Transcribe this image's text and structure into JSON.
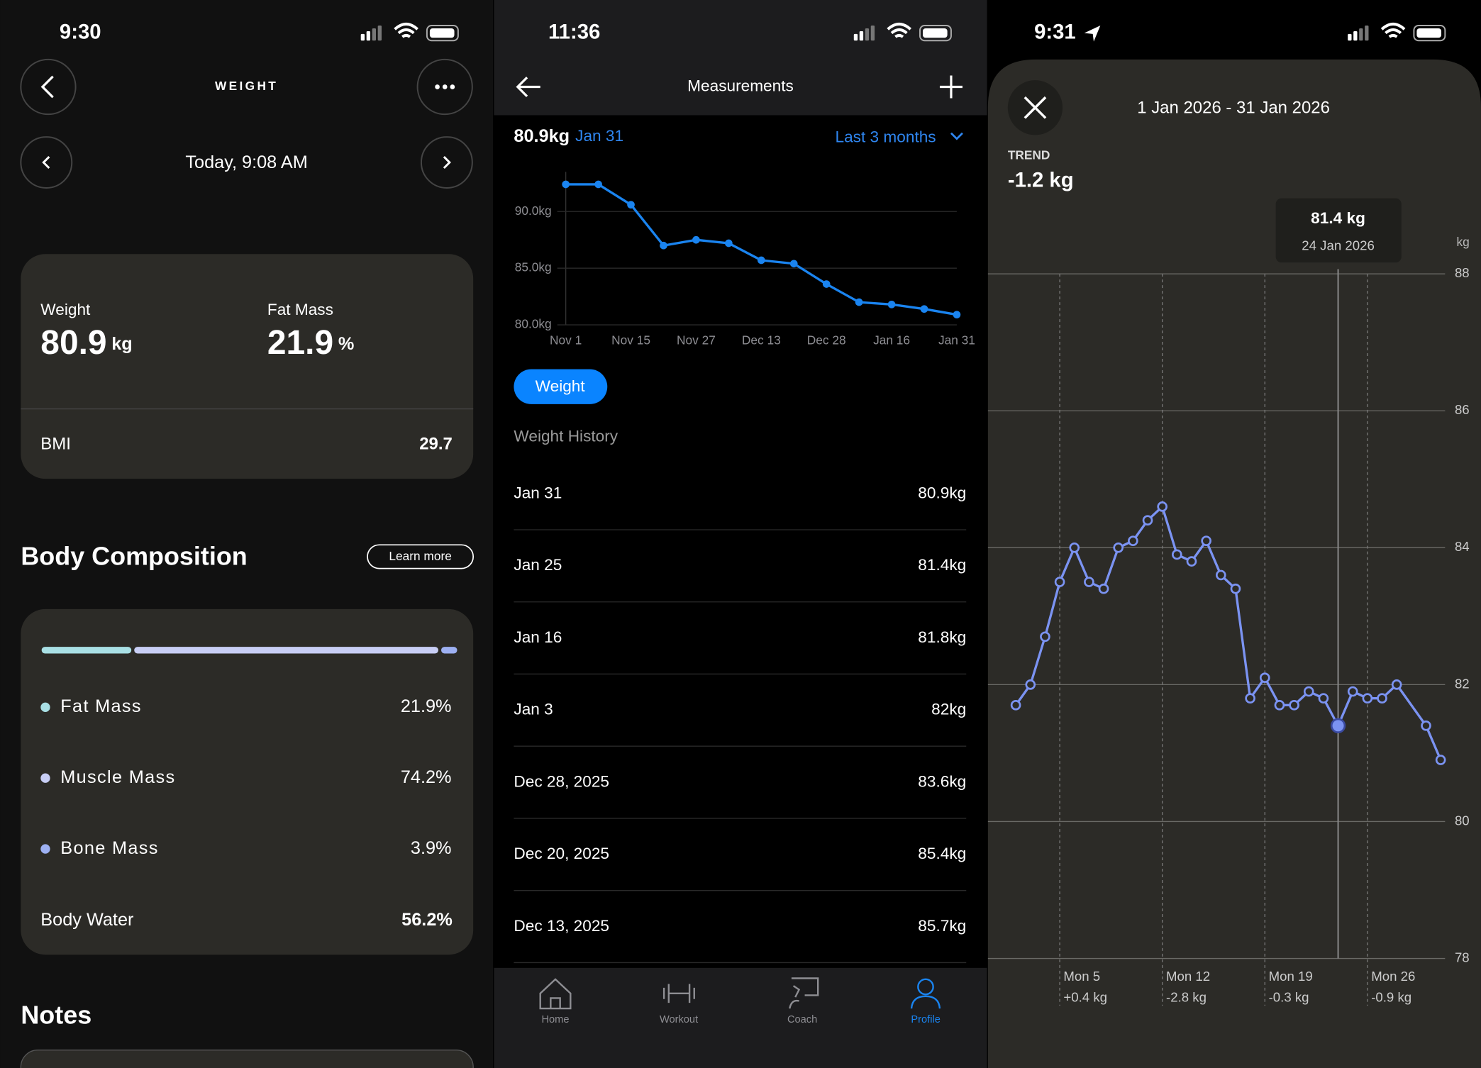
{
  "screens": [
    {
      "status_time": "9:30",
      "title": "WEIGHT",
      "date": "Today, 9:08 AM",
      "metrics": [
        {
          "label": "Weight",
          "value": "80.9",
          "unit": "kg"
        },
        {
          "label": "Fat Mass",
          "value": "21.9",
          "unit": "%"
        }
      ],
      "bmi": {
        "label": "BMI",
        "value": "29.7"
      },
      "section_title": "Body Composition",
      "learn_more": "Learn more",
      "composition": [
        {
          "label": "Fat Mass",
          "value": 21.9,
          "value_label": "21.9%",
          "color": "#a9e0e5"
        },
        {
          "label": "Muscle Mass",
          "value": 74.2,
          "value_label": "74.2%",
          "color": "#c8cef5"
        },
        {
          "label": "Bone Mass",
          "value": 3.9,
          "value_label": "3.9%",
          "color": "#9db0f2"
        }
      ],
      "body_water": {
        "label": "Body Water",
        "value": "56.2%"
      },
      "notes_title": "Notes"
    },
    {
      "status_time": "11:36",
      "title": "Measurements",
      "current_value": "80.9kg",
      "current_date": "Jan 31",
      "range": "Last 3 months",
      "chart_data": {
        "type": "line",
        "categories": [
          "Nov 1",
          null,
          "Nov 15",
          null,
          "Nov 27",
          null,
          "Dec 13",
          null,
          "Dec 28",
          null,
          "Jan 16",
          null,
          "Jan 31"
        ],
        "series": [
          {
            "name": "Weight",
            "color": "#1a84f0",
            "values": [
              92.4,
              92.4,
              90.6,
              87.0,
              87.5,
              87.2,
              85.7,
              85.4,
              83.6,
              82,
              81.8,
              81.4,
              80.9
            ]
          }
        ],
        "ylim": [
          80,
          93.5
        ],
        "yticks": [
          {
            "value": 80,
            "label": "80.0kg"
          },
          {
            "value": 85,
            "label": "85.0kg"
          },
          {
            "value": 90,
            "label": "90.0kg"
          }
        ],
        "grid": true
      },
      "history_title": "Weight History",
      "history": [
        [
          "Jan 31",
          "80.9kg"
        ],
        [
          "Jan 25",
          "81.4kg"
        ],
        [
          "Jan 16",
          "81.8kg"
        ],
        [
          "Jan 3",
          "82kg"
        ],
        [
          "Dec 28, 2025",
          "83.6kg"
        ],
        [
          "Dec 20, 2025",
          "85.4kg"
        ],
        [
          "Dec 13, 2025",
          "85.7kg"
        ]
      ],
      "tabs": [
        "Home",
        "Workout",
        "Coach",
        "Profile"
      ],
      "active_tab": 3
    },
    {
      "status_time": "9:31",
      "date_range": "1 Jan 2026 - 31 Jan 2026",
      "trend_label": "TREND",
      "trend_value": "-1.2 kg",
      "chart_data": {
        "type": "line",
        "y_unit": "kg",
        "x": [
          2,
          3,
          4,
          5,
          6,
          7,
          8,
          9,
          10,
          11,
          12,
          13,
          14,
          15,
          16,
          17,
          18,
          19,
          20,
          21,
          22,
          23,
          24,
          25,
          26,
          27,
          28,
          30,
          31
        ],
        "series": [
          {
            "color": "#7b93f2",
            "values": [
              81.7,
              82.0,
              82.7,
              83.5,
              84.0,
              83.5,
              83.4,
              84.0,
              84.1,
              84.4,
              84.6,
              83.9,
              83.8,
              84.1,
              83.6,
              83.4,
              81.8,
              82.1,
              81.7,
              81.7,
              81.9,
              81.8,
              81.4,
              81.9,
              81.8,
              81.8,
              82.0,
              81.4,
              80.9
            ]
          }
        ],
        "xlim": [
          0.1,
          31.3
        ],
        "xticks": [
          {
            "value": 5,
            "label": "Mon 5"
          },
          {
            "value": 12,
            "label": "Mon 12"
          },
          {
            "value": 19,
            "label": "Mon 19"
          },
          {
            "value": 26,
            "label": "Mon 26"
          }
        ],
        "tick_notes": [
          "+0.4 kg",
          "-2.8 kg",
          "-0.3 kg",
          "-0.9 kg"
        ],
        "ylim": [
          78,
          88
        ],
        "yticks": [
          78,
          80,
          82,
          84,
          86,
          88
        ],
        "grid": true,
        "selected": 22,
        "tooltip": {
          "value": "81.4 kg",
          "date": "24 Jan 2026"
        }
      }
    }
  ]
}
